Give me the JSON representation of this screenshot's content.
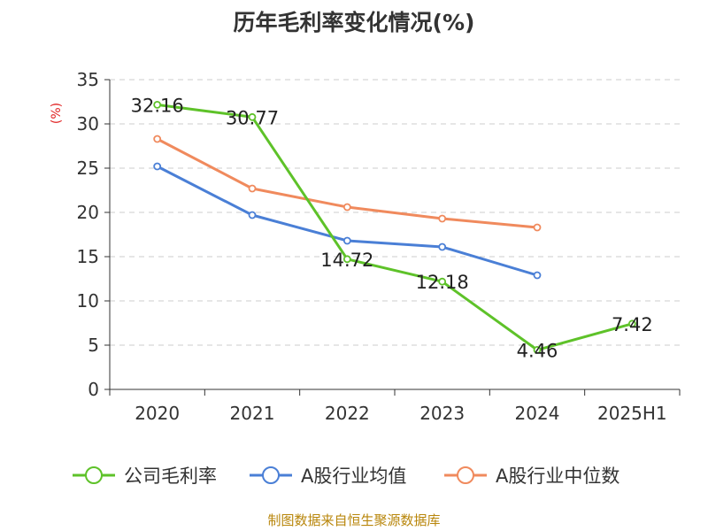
{
  "chart_data": {
    "type": "line",
    "title": "历年毛利率变化情况(%)",
    "ylabel": "(%)",
    "xlabel": "",
    "categories": [
      "2020",
      "2021",
      "2022",
      "2023",
      "2024",
      "2025H1"
    ],
    "ylim": [
      0,
      35
    ],
    "yticks": [
      0,
      5,
      10,
      15,
      20,
      25,
      30,
      35
    ],
    "grid": true,
    "legend_position": "bottom",
    "series": [
      {
        "name": "公司毛利率",
        "color": "#5ec229",
        "values": [
          32.16,
          30.77,
          14.72,
          12.18,
          4.46,
          7.42
        ],
        "labels": [
          "32.16",
          "30.77",
          "14.72",
          "12.18",
          "4.46",
          "7.42"
        ]
      },
      {
        "name": "A股行业均值",
        "color": "#4a7fd6",
        "values": [
          25.2,
          19.7,
          16.8,
          16.1,
          12.9,
          null
        ]
      },
      {
        "name": "A股行业中位数",
        "color": "#f08a5d",
        "values": [
          28.3,
          22.7,
          20.6,
          19.3,
          18.3,
          null
        ]
      }
    ]
  },
  "footer": "制图数据来自恒生聚源数据库"
}
